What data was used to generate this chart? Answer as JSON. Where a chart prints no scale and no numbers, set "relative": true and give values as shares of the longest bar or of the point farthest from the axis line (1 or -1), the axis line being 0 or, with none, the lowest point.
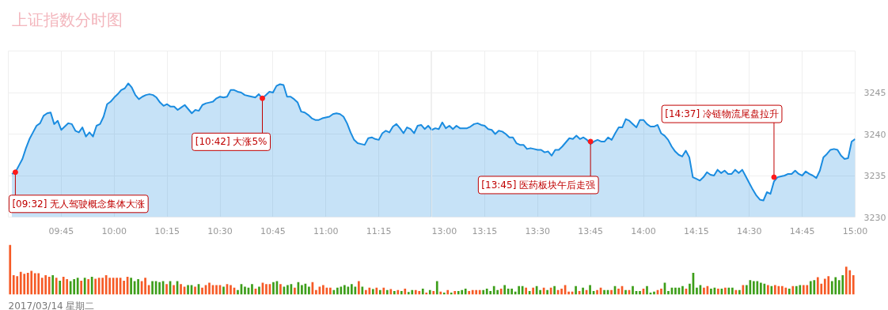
{
  "chart_data": [
    {
      "type": "area",
      "title": "上证指数分时图",
      "color": "#1a8ce0",
      "grid": true,
      "tick_labels": "x",
      "xlim": [
        "2017-03-14T09:30",
        "2017-03-14T11:30"
      ],
      "ylim": [
        3230,
        3250
      ],
      "yticks": [
        3230,
        3235,
        3240,
        3245
      ],
      "xticks": [
        {
          "value": "2017-03-14T09:45",
          "label": "09:45"
        },
        {
          "value": "2017-03-14T10:00",
          "label": "10:00"
        },
        {
          "value": "2017-03-14T10:15",
          "label": "10:15"
        },
        {
          "value": "2017-03-14T10:30",
          "label": "10:30"
        },
        {
          "value": "2017-03-14T10:45",
          "label": "10:45"
        },
        {
          "value": "2017-03-14T11:00",
          "label": "11:00"
        },
        {
          "value": "2017-03-14T11:15",
          "label": "11:15"
        }
      ],
      "x": [
        "2017-03-14T09:31",
        "2017-03-14T09:32",
        "2017-03-14T09:33",
        "2017-03-14T09:34",
        "2017-03-14T09:35",
        "2017-03-14T09:36",
        "2017-03-14T09:37",
        "2017-03-14T09:38",
        "2017-03-14T09:39",
        "2017-03-14T09:40",
        "2017-03-14T09:41",
        "2017-03-14T09:42",
        "2017-03-14T09:43",
        "2017-03-14T09:44",
        "2017-03-14T09:45",
        "2017-03-14T09:46",
        "2017-03-14T09:47",
        "2017-03-14T09:48",
        "2017-03-14T09:49",
        "2017-03-14T09:50",
        "2017-03-14T09:51",
        "2017-03-14T09:52",
        "2017-03-14T09:53",
        "2017-03-14T09:54",
        "2017-03-14T09:55",
        "2017-03-14T09:56",
        "2017-03-14T09:57",
        "2017-03-14T09:58",
        "2017-03-14T09:59",
        "2017-03-14T10:00",
        "2017-03-14T10:01",
        "2017-03-14T10:02",
        "2017-03-14T10:03",
        "2017-03-14T10:04",
        "2017-03-14T10:05",
        "2017-03-14T10:06",
        "2017-03-14T10:07",
        "2017-03-14T10:08",
        "2017-03-14T10:09",
        "2017-03-14T10:10",
        "2017-03-14T10:11",
        "2017-03-14T10:12",
        "2017-03-14T10:13",
        "2017-03-14T10:14",
        "2017-03-14T10:15",
        "2017-03-14T10:16",
        "2017-03-14T10:17",
        "2017-03-14T10:18",
        "2017-03-14T10:19",
        "2017-03-14T10:20",
        "2017-03-14T10:21",
        "2017-03-14T10:22",
        "2017-03-14T10:23",
        "2017-03-14T10:24",
        "2017-03-14T10:25",
        "2017-03-14T10:26",
        "2017-03-14T10:27",
        "2017-03-14T10:28",
        "2017-03-14T10:29",
        "2017-03-14T10:30",
        "2017-03-14T10:31",
        "2017-03-14T10:32",
        "2017-03-14T10:33",
        "2017-03-14T10:34",
        "2017-03-14T10:35",
        "2017-03-14T10:36",
        "2017-03-14T10:37",
        "2017-03-14T10:38",
        "2017-03-14T10:39",
        "2017-03-14T10:40",
        "2017-03-14T10:41",
        "2017-03-14T10:42",
        "2017-03-14T10:43",
        "2017-03-14T10:44",
        "2017-03-14T10:45",
        "2017-03-14T10:46",
        "2017-03-14T10:47",
        "2017-03-14T10:48",
        "2017-03-14T10:49",
        "2017-03-14T10:50",
        "2017-03-14T10:51",
        "2017-03-14T10:52",
        "2017-03-14T10:53",
        "2017-03-14T10:54",
        "2017-03-14T10:55",
        "2017-03-14T10:56",
        "2017-03-14T10:57",
        "2017-03-14T10:58",
        "2017-03-14T10:59",
        "2017-03-14T11:00",
        "2017-03-14T11:01",
        "2017-03-14T11:02",
        "2017-03-14T11:03",
        "2017-03-14T11:04",
        "2017-03-14T11:05",
        "2017-03-14T11:06",
        "2017-03-14T11:07",
        "2017-03-14T11:08",
        "2017-03-14T11:09",
        "2017-03-14T11:10",
        "2017-03-14T11:11",
        "2017-03-14T11:12",
        "2017-03-14T11:13",
        "2017-03-14T11:14",
        "2017-03-14T11:15",
        "2017-03-14T11:16",
        "2017-03-14T11:17",
        "2017-03-14T11:18",
        "2017-03-14T11:19",
        "2017-03-14T11:20",
        "2017-03-14T11:21",
        "2017-03-14T11:22",
        "2017-03-14T11:23",
        "2017-03-14T11:24",
        "2017-03-14T11:25",
        "2017-03-14T11:26",
        "2017-03-14T11:27",
        "2017-03-14T11:28",
        "2017-03-14T11:29",
        "2017-03-14T11:30"
      ],
      "values": [
        3235.2,
        3235.4,
        3236.2,
        3237.0,
        3238.3,
        3239.4,
        3240.2,
        3241.0,
        3241.3,
        3242.2,
        3242.5,
        3242.6,
        3241.2,
        3241.6,
        3240.5,
        3240.9,
        3241.3,
        3241.2,
        3240.4,
        3240.2,
        3240.8,
        3239.7,
        3240.2,
        3239.7,
        3241.0,
        3241.2,
        3242.1,
        3243.6,
        3243.9,
        3244.4,
        3244.8,
        3245.3,
        3245.5,
        3246.1,
        3245.6,
        3244.7,
        3244.2,
        3244.5,
        3244.7,
        3244.8,
        3244.7,
        3244.4,
        3243.8,
        3243.4,
        3243.6,
        3243.3,
        3243.3,
        3242.9,
        3243.2,
        3243.5,
        3243.0,
        3242.5,
        3242.9,
        3242.8,
        3243.5,
        3243.7,
        3243.8,
        3243.9,
        3244.3,
        3244.5,
        3244.4,
        3244.5,
        3245.3,
        3245.3,
        3245.1,
        3245.0,
        3244.7,
        3244.6,
        3244.5,
        3244.4,
        3244.8,
        3244.3,
        3244.7,
        3245.1,
        3245.0,
        3245.8,
        3246.0,
        3245.9,
        3244.5,
        3244.5,
        3244.2,
        3243.8,
        3242.7,
        3242.6,
        3242.3,
        3241.9,
        3241.7,
        3241.7,
        3241.9,
        3242.0,
        3242.1,
        3242.4,
        3242.5,
        3242.4,
        3242.1,
        3241.3,
        3240.2,
        3239.3,
        3238.9,
        3238.8,
        3238.7,
        3239.5,
        3239.6,
        3239.4,
        3239.3,
        3240.1,
        3240.4,
        3240.2,
        3240.9,
        3241.2,
        3240.7,
        3240.1,
        3240.8,
        3240.6,
        3240.1,
        3241.0,
        3241.1,
        3240.6,
        3241.0,
        3240.5
      ],
      "annotations": [
        {
          "text": "[09:32] 无人驾驶概念集体大涨",
          "x": "2017-03-14T09:32",
          "y": 3235.4
        },
        {
          "text": "[10:42] 大涨5%",
          "x": "2017-03-14T10:42",
          "y": 3244.3
        }
      ]
    },
    {
      "type": "area",
      "color": "#1a8ce0",
      "grid": true,
      "xlim": [
        "2017-03-14T13:00",
        "2017-03-14T15:00"
      ],
      "ylim": [
        3230,
        3250
      ],
      "yticks": [
        3230,
        3235,
        3240,
        3245
      ],
      "xticks": [
        {
          "value": "2017-03-14T13:00",
          "label": "13:00"
        },
        {
          "value": "2017-03-14T13:15",
          "label": "13:15"
        },
        {
          "value": "2017-03-14T13:30",
          "label": "13:30"
        },
        {
          "value": "2017-03-14T13:45",
          "label": "13:45"
        },
        {
          "value": "2017-03-14T14:00",
          "label": "14:00"
        },
        {
          "value": "2017-03-14T14:15",
          "label": "14:15"
        },
        {
          "value": "2017-03-14T14:30",
          "label": "14:30"
        },
        {
          "value": "2017-03-14T14:45",
          "label": "14:45"
        },
        {
          "value": "2017-03-14T15:00",
          "label": "15:00"
        }
      ],
      "x": [
        "2017-03-14T13:00",
        "2017-03-14T13:01",
        "2017-03-14T13:02",
        "2017-03-14T13:03",
        "2017-03-14T13:04",
        "2017-03-14T13:05",
        "2017-03-14T13:06",
        "2017-03-14T13:07",
        "2017-03-14T13:08",
        "2017-03-14T13:09",
        "2017-03-14T13:10",
        "2017-03-14T13:11",
        "2017-03-14T13:12",
        "2017-03-14T13:13",
        "2017-03-14T13:14",
        "2017-03-14T13:15",
        "2017-03-14T13:16",
        "2017-03-14T13:17",
        "2017-03-14T13:18",
        "2017-03-14T13:19",
        "2017-03-14T13:20",
        "2017-03-14T13:21",
        "2017-03-14T13:22",
        "2017-03-14T13:23",
        "2017-03-14T13:24",
        "2017-03-14T13:25",
        "2017-03-14T13:26",
        "2017-03-14T13:27",
        "2017-03-14T13:28",
        "2017-03-14T13:29",
        "2017-03-14T13:30",
        "2017-03-14T13:31",
        "2017-03-14T13:32",
        "2017-03-14T13:33",
        "2017-03-14T13:34",
        "2017-03-14T13:35",
        "2017-03-14T13:36",
        "2017-03-14T13:37",
        "2017-03-14T13:38",
        "2017-03-14T13:39",
        "2017-03-14T13:40",
        "2017-03-14T13:41",
        "2017-03-14T13:42",
        "2017-03-14T13:43",
        "2017-03-14T13:44",
        "2017-03-14T13:45",
        "2017-03-14T13:46",
        "2017-03-14T13:47",
        "2017-03-14T13:48",
        "2017-03-14T13:49",
        "2017-03-14T13:50",
        "2017-03-14T13:51",
        "2017-03-14T13:52",
        "2017-03-14T13:53",
        "2017-03-14T13:54",
        "2017-03-14T13:55",
        "2017-03-14T13:56",
        "2017-03-14T13:57",
        "2017-03-14T13:58",
        "2017-03-14T13:59",
        "2017-03-14T14:00",
        "2017-03-14T14:01",
        "2017-03-14T14:02",
        "2017-03-14T14:03",
        "2017-03-14T14:04",
        "2017-03-14T14:05",
        "2017-03-14T14:06",
        "2017-03-14T14:07",
        "2017-03-14T14:08",
        "2017-03-14T14:09",
        "2017-03-14T14:10",
        "2017-03-14T14:11",
        "2017-03-14T14:12",
        "2017-03-14T14:13",
        "2017-03-14T14:14",
        "2017-03-14T14:15",
        "2017-03-14T14:16",
        "2017-03-14T14:17",
        "2017-03-14T14:18",
        "2017-03-14T14:19",
        "2017-03-14T14:20",
        "2017-03-14T14:21",
        "2017-03-14T14:22",
        "2017-03-14T14:23",
        "2017-03-14T14:24",
        "2017-03-14T14:25",
        "2017-03-14T14:26",
        "2017-03-14T14:27",
        "2017-03-14T14:28",
        "2017-03-14T14:29",
        "2017-03-14T14:30",
        "2017-03-14T14:31",
        "2017-03-14T14:32",
        "2017-03-14T14:33",
        "2017-03-14T14:34",
        "2017-03-14T14:35",
        "2017-03-14T14:36",
        "2017-03-14T14:37",
        "2017-03-14T14:38",
        "2017-03-14T14:39",
        "2017-03-14T14:40",
        "2017-03-14T14:41",
        "2017-03-14T14:42",
        "2017-03-14T14:43",
        "2017-03-14T14:44",
        "2017-03-14T14:45",
        "2017-03-14T14:46",
        "2017-03-14T14:47",
        "2017-03-14T14:48",
        "2017-03-14T14:49",
        "2017-03-14T14:50",
        "2017-03-14T14:51",
        "2017-03-14T14:52",
        "2017-03-14T14:53",
        "2017-03-14T14:54",
        "2017-03-14T14:55",
        "2017-03-14T14:56",
        "2017-03-14T14:57",
        "2017-03-14T14:58",
        "2017-03-14T14:59",
        "2017-03-14T15:00"
      ],
      "values": [
        3240.5,
        3240.7,
        3240.6,
        3241.4,
        3240.7,
        3241.0,
        3240.6,
        3241.0,
        3240.7,
        3240.7,
        3240.7,
        3240.9,
        3241.2,
        3241.3,
        3241.1,
        3241.0,
        3240.6,
        3240.5,
        3240.0,
        3240.4,
        3240.3,
        3240.0,
        3239.6,
        3239.6,
        3238.9,
        3238.7,
        3238.7,
        3238.2,
        3238.3,
        3238.2,
        3238.1,
        3238.1,
        3237.8,
        3237.9,
        3237.4,
        3238.1,
        3238.1,
        3238.5,
        3239.0,
        3239.5,
        3239.4,
        3239.8,
        3239.4,
        3239.6,
        3239.3,
        3238.8,
        3239.1,
        3239.3,
        3239.1,
        3239.1,
        3239.6,
        3239.3,
        3240.1,
        3240.8,
        3240.8,
        3241.8,
        3241.6,
        3241.2,
        3240.8,
        3241.7,
        3241.7,
        3241.2,
        3240.9,
        3240.9,
        3241.1,
        3240.1,
        3239.8,
        3239.3,
        3238.5,
        3237.9,
        3237.5,
        3237.3,
        3238.0,
        3237.2,
        3234.8,
        3234.6,
        3234.4,
        3234.8,
        3235.4,
        3235.1,
        3235.0,
        3235.7,
        3235.3,
        3235.6,
        3235.2,
        3235.2,
        3235.7,
        3235.3,
        3235.7,
        3234.9,
        3234.1,
        3233.3,
        3232.6,
        3232.1,
        3232.0,
        3233.0,
        3232.8,
        3234.3,
        3234.8,
        3234.9,
        3235.0,
        3235.2,
        3235.2,
        3235.6,
        3235.2,
        3235.0,
        3235.5,
        3235.2,
        3235.0,
        3234.7,
        3235.6,
        3237.2,
        3237.6,
        3238.1,
        3238.2,
        3238.1,
        3237.4,
        3237.0,
        3237.1,
        3239.1,
        3239.4
      ],
      "annotations": [
        {
          "text": "[13:45] 医药板块午后走强",
          "x": "2017-03-14T13:45",
          "y": 3239.1
        },
        {
          "text": "[14:37] 冷链物流尾盘拉升",
          "x": "2017-03-14T14:37",
          "y": 3234.8
        }
      ]
    },
    {
      "type": "bar",
      "relative": true,
      "categories": [
        null,
        null,
        null,
        null,
        null,
        null,
        null,
        null,
        null,
        null,
        null,
        null,
        null,
        null,
        null,
        null,
        null,
        null,
        null,
        null,
        null,
        null,
        null,
        null,
        null,
        null,
        null,
        null,
        null,
        null,
        null,
        null,
        null,
        null,
        null,
        null,
        null,
        null,
        null,
        null,
        null,
        null,
        null,
        null,
        null,
        null,
        null,
        null,
        null,
        null,
        null,
        null,
        null,
        null,
        null,
        null,
        null,
        null,
        null,
        null,
        null,
        null,
        null,
        null,
        null,
        null,
        null,
        null,
        null,
        null,
        null,
        null,
        null,
        null,
        null,
        null,
        null,
        null,
        null,
        null,
        null,
        null,
        null,
        null,
        null,
        null,
        null,
        null,
        null,
        null,
        null,
        null,
        null,
        null,
        null,
        null,
        null,
        null,
        null,
        null,
        null,
        null,
        null,
        null,
        null,
        null,
        null,
        null,
        null,
        null,
        null,
        null,
        null,
        null,
        null,
        null,
        null,
        null,
        null,
        null,
        null,
        null,
        null,
        null,
        null,
        null,
        null,
        null,
        null,
        null,
        null,
        null,
        null,
        null,
        null,
        null,
        null,
        null,
        null,
        null,
        null,
        null,
        null,
        null,
        null,
        null,
        null,
        null,
        null,
        null,
        null,
        null,
        null,
        null,
        null,
        null,
        null,
        null,
        null,
        null,
        null,
        null,
        null,
        null,
        null,
        null,
        null,
        null,
        null,
        null,
        null,
        null,
        null,
        null,
        null,
        null,
        null,
        null,
        null,
        null,
        null,
        null,
        null,
        null,
        null,
        null,
        null,
        null,
        null,
        null,
        null,
        null,
        null,
        null,
        null,
        null,
        null,
        null,
        null,
        null,
        null,
        null,
        null,
        null,
        null,
        null,
        null,
        null,
        null,
        null,
        null,
        null,
        null,
        null,
        null,
        null,
        null,
        null,
        null,
        null,
        null,
        null,
        null,
        null,
        null,
        null,
        null,
        null,
        null,
        null,
        null,
        null,
        null,
        null,
        null,
        null,
        null,
        null
      ],
      "values": [
        1.0,
        0.39,
        0.37,
        0.46,
        0.42,
        0.44,
        0.48,
        0.43,
        0.43,
        0.34,
        0.39,
        0.36,
        0.39,
        0.34,
        0.28,
        0.36,
        0.31,
        0.27,
        0.31,
        0.34,
        0.28,
        0.34,
        0.31,
        0.36,
        0.32,
        0.34,
        0.34,
        0.39,
        0.34,
        0.34,
        0.34,
        0.34,
        0.28,
        0.36,
        0.34,
        0.27,
        0.31,
        0.27,
        0.34,
        0.19,
        0.27,
        0.27,
        0.25,
        0.27,
        0.21,
        0.27,
        0.19,
        0.27,
        0.21,
        0.16,
        0.19,
        0.19,
        0.16,
        0.21,
        0.14,
        0.19,
        0.24,
        0.19,
        0.19,
        0.19,
        0.16,
        0.21,
        0.19,
        0.14,
        0.09,
        0.21,
        0.16,
        0.14,
        0.21,
        0.12,
        0.16,
        0.24,
        0.21,
        0.21,
        0.25,
        0.27,
        0.21,
        0.16,
        0.19,
        0.21,
        0.14,
        0.25,
        0.19,
        0.22,
        0.16,
        0.25,
        0.09,
        0.16,
        0.19,
        0.14,
        0.14,
        0.09,
        0.14,
        0.16,
        0.19,
        0.16,
        0.21,
        0.16,
        0.27,
        0.16,
        0.09,
        0.14,
        0.11,
        0.14,
        0.09,
        0.14,
        0.09,
        0.11,
        0.07,
        0.09,
        0.07,
        0.12,
        0.05,
        0.09,
        0.09,
        0.07,
        0.12,
        0.04,
        0.09,
        0.07,
        0.27,
        0.06,
        0.04,
        0.09,
        0.04,
        0.07,
        0.07,
        0.09,
        0.12,
        0.07,
        0.09,
        0.09,
        0.09,
        0.09,
        0.12,
        0.07,
        0.17,
        0.09,
        0.12,
        0.19,
        0.12,
        0.12,
        0.06,
        0.17,
        0.17,
        0.14,
        0.07,
        0.14,
        0.17,
        0.09,
        0.14,
        0.09,
        0.14,
        0.17,
        0.09,
        0.12,
        0.19,
        0.06,
        0.06,
        0.17,
        0.07,
        0.14,
        0.09,
        0.19,
        0.07,
        0.09,
        0.14,
        0.09,
        0.09,
        0.09,
        0.17,
        0.12,
        0.17,
        0.09,
        0.09,
        0.17,
        0.07,
        0.07,
        0.12,
        0.17,
        0.04,
        0.06,
        0.09,
        0.12,
        0.24,
        0.07,
        0.14,
        0.14,
        0.14,
        0.17,
        0.12,
        0.22,
        0.44,
        0.14,
        0.19,
        0.14,
        0.17,
        0.12,
        0.14,
        0.12,
        0.12,
        0.14,
        0.14,
        0.14,
        0.09,
        0.09,
        0.19,
        0.19,
        0.29,
        0.27,
        0.27,
        0.24,
        0.22,
        0.19,
        0.17,
        0.19,
        0.17,
        0.17,
        0.14,
        0.12,
        0.17,
        0.17,
        0.19,
        0.19,
        0.19,
        0.27,
        0.29,
        0.35,
        0.22,
        0.32,
        0.37,
        0.27,
        0.35,
        0.29,
        0.39,
        0.56,
        0.49,
        0.39
      ],
      "colors": [
        "#f65a26",
        "#f65a26",
        "#f65a26",
        "#f65a26",
        "#f65a26",
        "#f65a26",
        "#f65a26",
        "#f65a26",
        "#f65a26",
        "#f65a26",
        "#f65a26",
        "#f65a26",
        "#3d9e1a",
        "#f65a26",
        "#3d9e1a",
        "#f65a26",
        "#f65a26",
        "#3d9e1a",
        "#3d9e1a",
        "#3d9e1a",
        "#f65a26",
        "#3d9e1a",
        "#f65a26",
        "#3d9e1a",
        "#f65a26",
        "#f65a26",
        "#f65a26",
        "#f65a26",
        "#f65a26",
        "#f65a26",
        "#f65a26",
        "#f65a26",
        "#f65a26",
        "#f65a26",
        "#3d9e1a",
        "#3d9e1a",
        "#3d9e1a",
        "#f65a26",
        "#f65a26",
        "#f65a26",
        "#3d9e1a",
        "#3d9e1a",
        "#3d9e1a",
        "#3d9e1a",
        "#f65a26",
        "#3d9e1a",
        "#f65a26",
        "#3d9e1a",
        "#f65a26",
        "#f65a26",
        "#3d9e1a",
        "#3d9e1a",
        "#f65a26",
        "#3d9e1a",
        "#f65a26",
        "#f65a26",
        "#f65a26",
        "#f65a26",
        "#f65a26",
        "#f65a26",
        "#3d9e1a",
        "#f65a26",
        "#f65a26",
        "#f65a26",
        "#3d9e1a",
        "#3d9e1a",
        "#3d9e1a",
        "#3d9e1a",
        "#3d9e1a",
        "#f65a26",
        "#3d9e1a",
        "#f65a26",
        "#f65a26",
        "#f65a26",
        "#3d9e1a",
        "#3d9e1a",
        "#f65a26",
        "#3d9e1a",
        "#3d9e1a",
        "#3d9e1a",
        "#f65a26",
        "#3d9e1a",
        "#3d9e1a",
        "#3d9e1a",
        "#3d9e1a",
        "#f65a26",
        "#f65a26",
        "#f65a26",
        "#f65a26",
        "#f65a26",
        "#f65a26",
        "#3d9e1a",
        "#3d9e1a",
        "#3d9e1a",
        "#3d9e1a",
        "#3d9e1a",
        "#3d9e1a",
        "#3d9e1a",
        "#f65a26",
        "#3d9e1a",
        "#f65a26",
        "#f65a26",
        "#3d9e1a",
        "#f65a26",
        "#3d9e1a",
        "#f65a26",
        "#3d9e1a",
        "#f65a26",
        "#3d9e1a",
        "#f65a26",
        "#3d9e1a",
        "#f65a26",
        "#3d9e1a",
        "#3d9e1a",
        "#f65a26",
        "#f65a26",
        "#3d9e1a",
        "#f65a26",
        "#3d9e1a",
        "#f65a26",
        "#3d9e1a",
        "#f65a26",
        "#3d9e1a",
        "#f65a26",
        "#3d9e1a",
        "#f65a26",
        "#3d9e1a",
        "#3d9e1a",
        "#3d9e1a",
        "#f65a26",
        "#f65a26",
        "#f65a26",
        "#f65a26",
        "#3d9e1a",
        "#3d9e1a",
        "#3d9e1a",
        "#3d9e1a",
        "#3d9e1a",
        "#f65a26",
        "#3d9e1a",
        "#3d9e1a",
        "#3d9e1a",
        "#3d9e1a",
        "#3d9e1a",
        "#3d9e1a",
        "#f65a26",
        "#3d9e1a",
        "#f65a26",
        "#3d9e1a",
        "#3d9e1a",
        "#f65a26",
        "#3d9e1a",
        "#f65a26",
        "#3d9e1a",
        "#f65a26",
        "#f65a26",
        "#f65a26",
        "#f65a26",
        "#f65a26",
        "#3d9e1a",
        "#f65a26",
        "#3d9e1a",
        "#f65a26",
        "#3d9e1a",
        "#3d9e1a",
        "#f65a26",
        "#f65a26",
        "#3d9e1a",
        "#3d9e1a",
        "#f65a26",
        "#3d9e1a",
        "#f65a26",
        "#f65a26",
        "#3d9e1a",
        "#f65a26",
        "#3d9e1a",
        "#3d9e1a",
        "#3d9e1a",
        "#f65a26",
        "#3d9e1a",
        "#3d9e1a",
        "#3d9e1a",
        "#f65a26",
        "#f65a26",
        "#3d9e1a",
        "#3d9e1a",
        "#3d9e1a",
        "#3d9e1a",
        "#3d9e1a",
        "#3d9e1a",
        "#f65a26",
        "#3d9e1a",
        "#3d9e1a",
        "#3d9e1a",
        "#3d9e1a",
        "#f65a26",
        "#f65a26",
        "#3d9e1a",
        "#3d9e1a",
        "#f65a26",
        "#3d9e1a",
        "#f65a26",
        "#3d9e1a",
        "#3d9e1a",
        "#f65a26",
        "#3d9e1a",
        "#f65a26",
        "#3d9e1a",
        "#3d9e1a",
        "#3d9e1a",
        "#3d9e1a",
        "#3d9e1a",
        "#3d9e1a",
        "#f65a26",
        "#3d9e1a",
        "#f65a26",
        "#f65a26",
        "#f65a26",
        "#f65a26",
        "#3d9e1a",
        "#f65a26",
        "#3d9e1a",
        "#3d9e1a",
        "#f65a26",
        "#f65a26",
        "#3d9e1a",
        "#3d9e1a",
        "#f65a26",
        "#f65a26",
        "#f65a26",
        "#f65a26",
        "#3d9e1a",
        "#3d9e1a",
        "#3d9e1a",
        "#3d9e1a",
        "#f65a26",
        "#f65a26",
        "#f65a26"
      ],
      "annotations": [
        "2017/03/14  星期二"
      ]
    }
  ]
}
